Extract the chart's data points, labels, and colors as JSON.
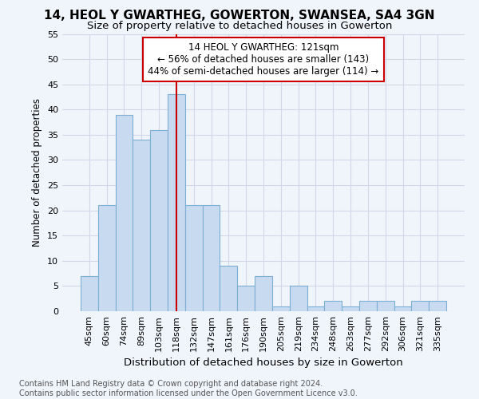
{
  "title1": "14, HEOL Y GWARTHEG, GOWERTON, SWANSEA, SA4 3GN",
  "title2": "Size of property relative to detached houses in Gowerton",
  "xlabel": "Distribution of detached houses by size in Gowerton",
  "ylabel": "Number of detached properties",
  "categories": [
    "45sqm",
    "60sqm",
    "74sqm",
    "89sqm",
    "103sqm",
    "118sqm",
    "132sqm",
    "147sqm",
    "161sqm",
    "176sqm",
    "190sqm",
    "205sqm",
    "219sqm",
    "234sqm",
    "248sqm",
    "263sqm",
    "277sqm",
    "292sqm",
    "306sqm",
    "321sqm",
    "335sqm"
  ],
  "values": [
    7,
    21,
    39,
    34,
    36,
    43,
    21,
    21,
    9,
    5,
    7,
    1,
    5,
    1,
    2,
    1,
    2,
    2,
    1,
    2,
    2
  ],
  "bar_color": "#c8daf0",
  "bar_edge_color": "#7bafd4",
  "annotation_line1": "14 HEOL Y GWARTHEG: 121sqm",
  "annotation_line2": "← 56% of detached houses are smaller (143)",
  "annotation_line3": "44% of semi-detached houses are larger (114) →",
  "vline_color": "#cc0000",
  "vline_index": 5,
  "ylim_max": 55,
  "yticks": [
    0,
    5,
    10,
    15,
    20,
    25,
    30,
    35,
    40,
    45,
    50,
    55
  ],
  "footer1": "Contains HM Land Registry data © Crown copyright and database right 2024.",
  "footer2": "Contains public sector information licensed under the Open Government Licence v3.0.",
  "bg_color": "#f0f4fb",
  "grid_color": "#d0d8e8",
  "title1_fontsize": 11,
  "title2_fontsize": 9.5,
  "xlabel_fontsize": 9.5,
  "ylabel_fontsize": 8.5,
  "tick_fontsize": 8,
  "annotation_fontsize": 8.5,
  "footer_fontsize": 7
}
